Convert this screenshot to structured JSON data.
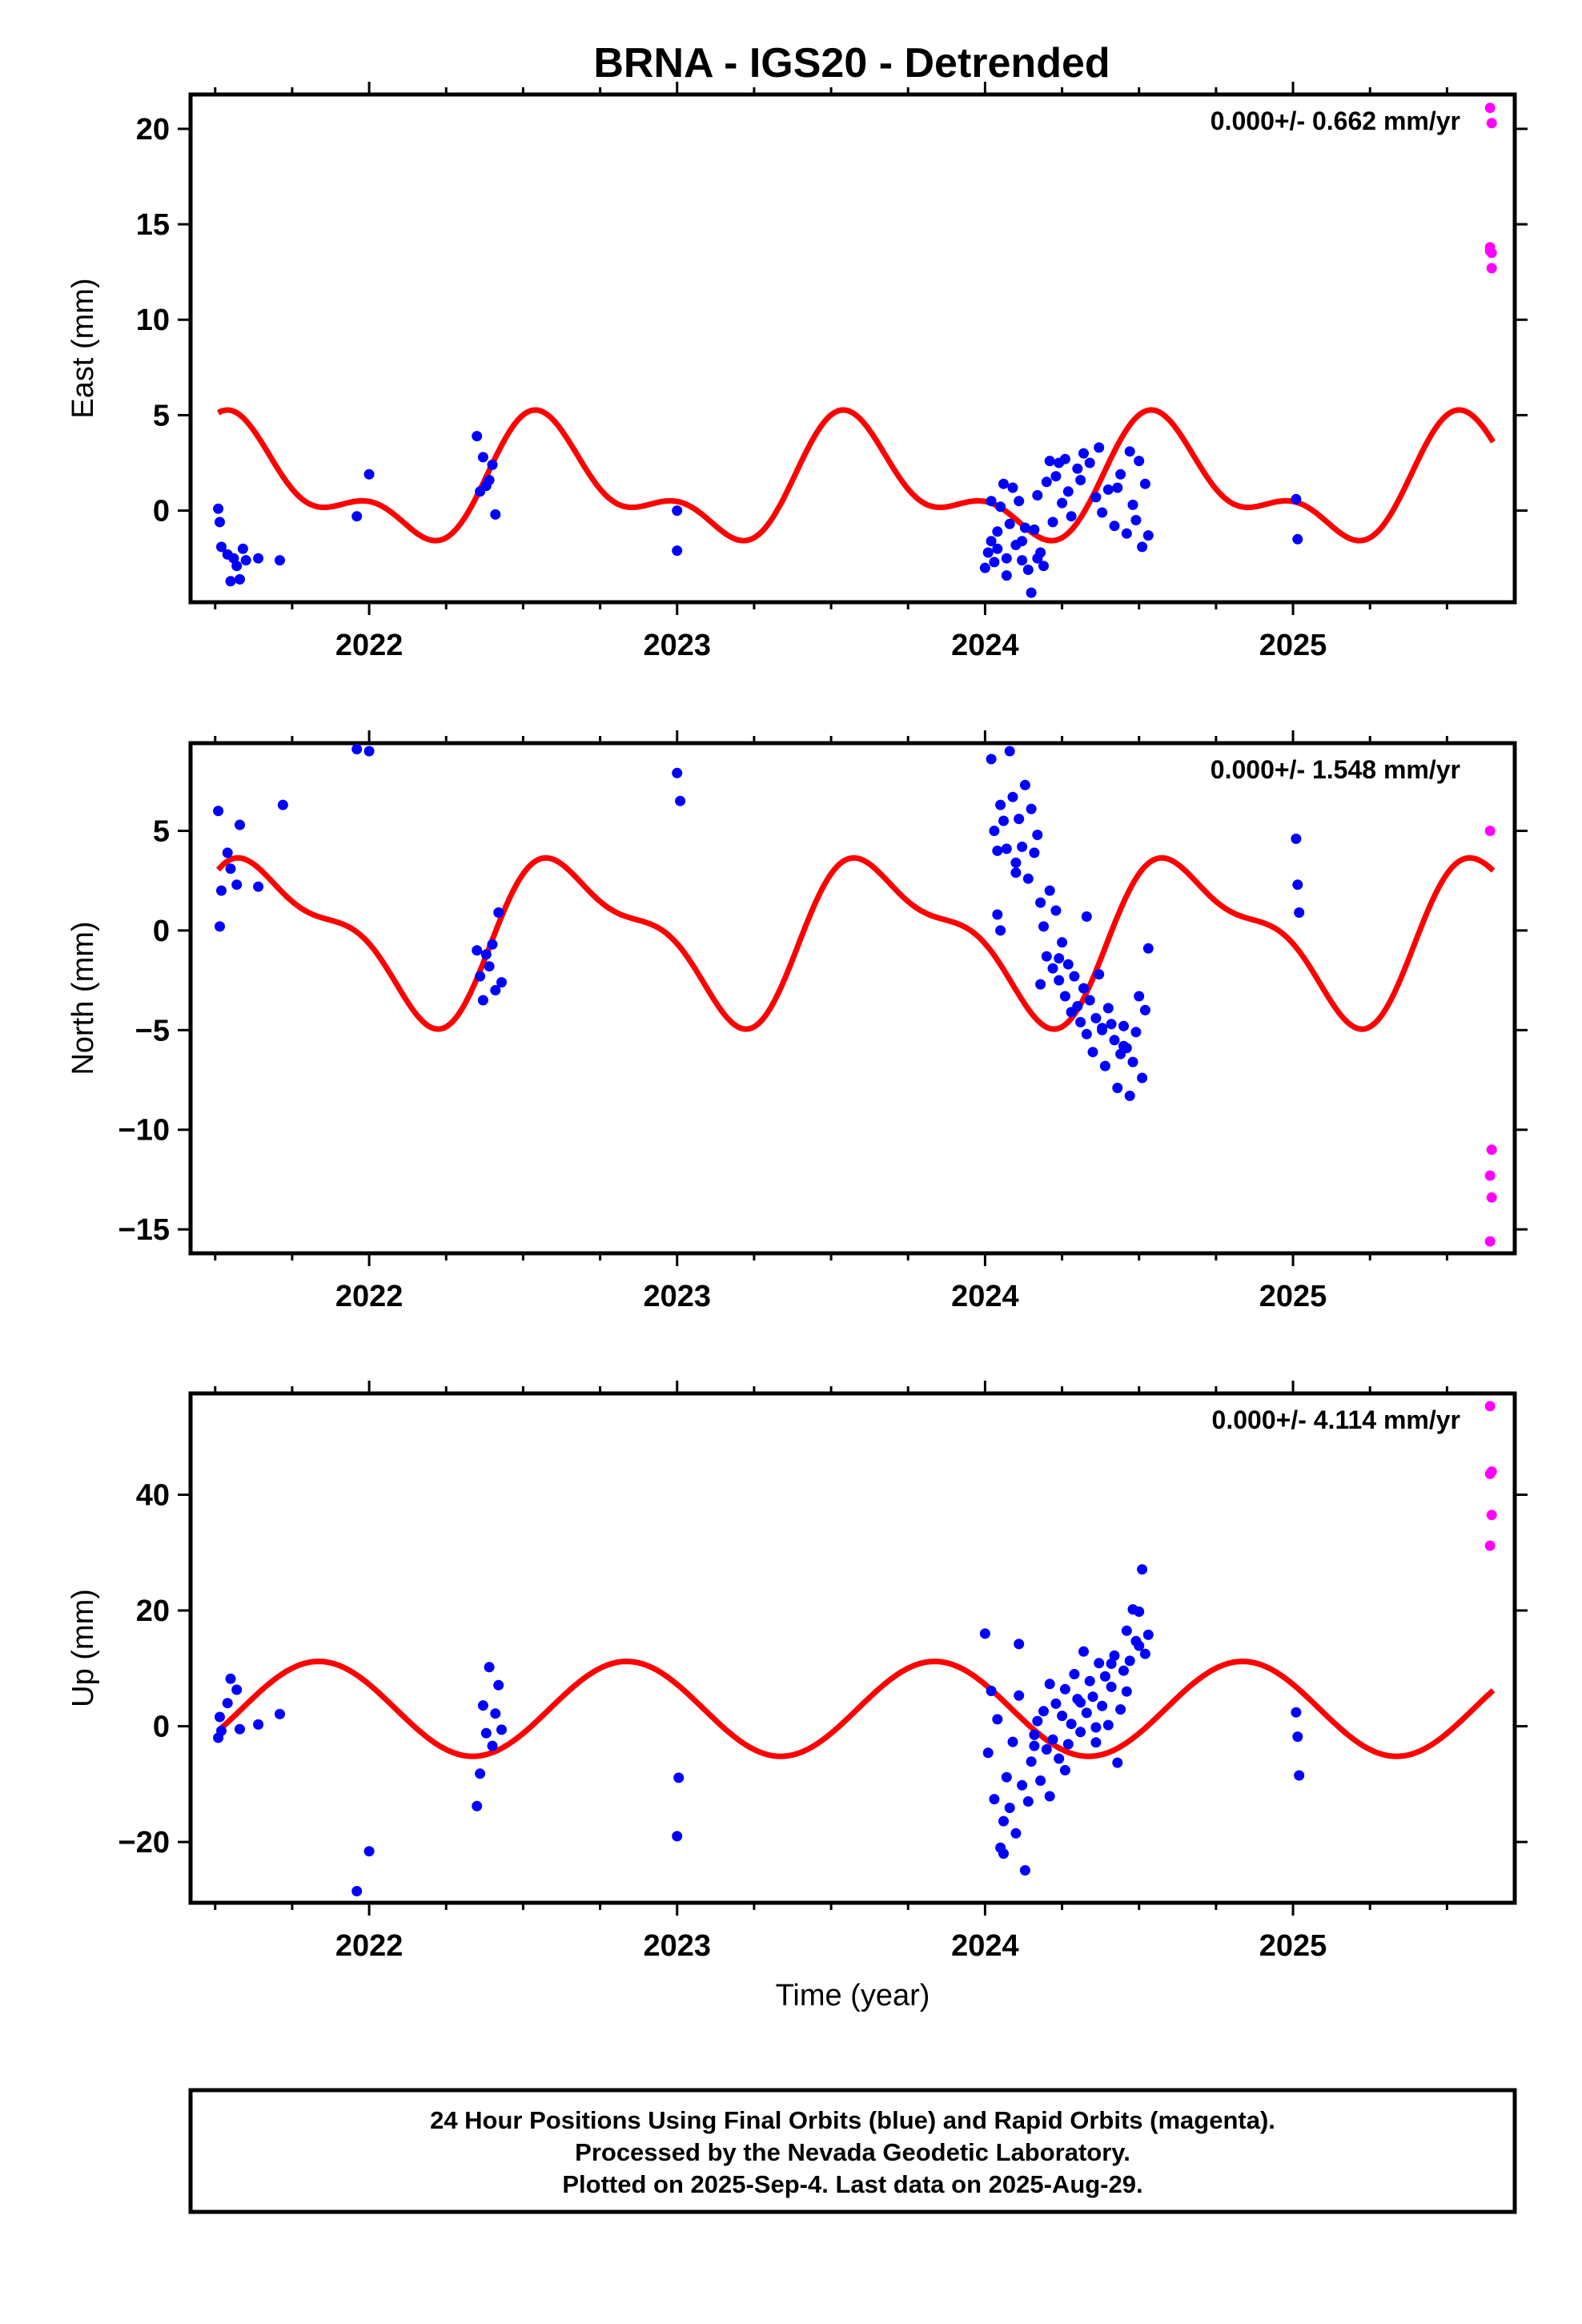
{
  "title": "BRNA - IGS20 - Detrended",
  "footer": {
    "line1": "24 Hour Positions Using Final Orbits (blue) and Rapid Orbits (magenta).",
    "line2": "Processed by the Nevada Geodetic Laboratory.",
    "line3": "Plotted on 2025-Sep-4. Last data on 2025-Aug-29."
  },
  "colors": {
    "final": "#0000ff",
    "rapid": "#ff00ff",
    "model": "#ff0000"
  },
  "chart_data": [
    {
      "type": "scatter",
      "title": "",
      "xlabel": "",
      "ylabel": "East (mm)",
      "xlim": [
        2021.42,
        2025.72
      ],
      "ylim": [
        -4.8,
        21.8
      ],
      "xticks": [
        2022,
        2023,
        2024,
        2025
      ],
      "yticks": [
        0,
        5,
        10,
        15,
        20
      ],
      "annotation": "0.000+/- 0.662 mm/yr",
      "grid": false,
      "model": {
        "amp1": 2.6,
        "phase1": 4.2,
        "amp2": 1.5,
        "phase2": 1.3,
        "offset": 1.3
      },
      "series": [
        {
          "name": "Final Orbits",
          "color": "#0000ff",
          "x": [
            2021.51,
            2021.515,
            2021.52,
            2021.54,
            2021.55,
            2021.56,
            2021.57,
            2021.58,
            2021.59,
            2021.6,
            2021.64,
            2021.71,
            2021.96,
            2022.0,
            2022.35,
            2022.36,
            2022.37,
            2022.38,
            2022.39,
            2022.4,
            2022.41,
            2023.0,
            2023.0,
            2024.0,
            2024.01,
            2024.02,
            2024.02,
            2024.03,
            2024.04,
            2024.04,
            2024.05,
            2024.06,
            2024.07,
            2024.08,
            2024.09,
            2024.1,
            2024.11,
            2024.12,
            2024.13,
            2024.14,
            2024.15,
            2024.16,
            2024.17,
            2024.18,
            2024.19,
            2024.2,
            2024.21,
            2024.22,
            2024.23,
            2024.24,
            2024.25,
            2024.27,
            2024.28,
            2024.3,
            2024.32,
            2024.34,
            2024.36,
            2024.38,
            2024.4,
            2024.42,
            2024.44,
            2024.46,
            2024.48,
            2024.49,
            2024.5,
            2024.51,
            2024.52,
            2024.53,
            2024.07,
            2024.12,
            2024.17,
            2024.26,
            2024.31,
            2024.37,
            2024.43,
            2024.47,
            2025.01,
            2025.015
          ],
          "y": [
            0.1,
            -0.6,
            -1.9,
            -2.3,
            -3.7,
            -2.5,
            -2.9,
            -3.6,
            -2.0,
            -2.6,
            -2.5,
            -2.6,
            -0.3,
            1.9,
            3.9,
            1.0,
            2.8,
            1.3,
            1.6,
            2.4,
            -0.2,
            -2.1,
            0.0,
            -3.0,
            -2.2,
            -1.6,
            0.5,
            -2.7,
            -1.1,
            -2.0,
            0.2,
            1.4,
            -2.5,
            -0.7,
            1.2,
            -1.8,
            0.5,
            -2.6,
            -0.9,
            -3.1,
            -4.3,
            -1.0,
            0.8,
            -2.2,
            -2.9,
            1.5,
            2.6,
            -0.6,
            1.8,
            2.5,
            0.4,
            1.0,
            -0.3,
            2.2,
            3.0,
            2.5,
            0.7,
            -0.1,
            1.1,
            -0.8,
            1.9,
            -1.2,
            0.3,
            -0.5,
            2.6,
            -1.9,
            1.4,
            -1.3,
            -3.4,
            -1.6,
            -2.5,
            2.7,
            1.6,
            3.3,
            1.2,
            3.1,
            0.6,
            -1.5
          ]
        },
        {
          "name": "Rapid Orbits",
          "color": "#ff00ff",
          "x": [
            2025.64,
            2025.645,
            2025.64,
            2025.645,
            2025.645,
            2025.64
          ],
          "y": [
            21.1,
            20.3,
            13.8,
            13.5,
            12.7,
            13.6
          ]
        }
      ]
    },
    {
      "type": "scatter",
      "title": "",
      "xlabel": "",
      "ylabel": "North (mm)",
      "xlim": [
        2021.42,
        2025.72
      ],
      "ylim": [
        -16.2,
        9.4
      ],
      "xticks": [
        2022,
        2023,
        2024,
        2025
      ],
      "yticks": [
        -15,
        -10,
        -5,
        0,
        5
      ],
      "annotation": "0.000+/- 1.548 mm/yr",
      "grid": false,
      "model": {
        "amp1": 3.6,
        "phase1": 3.65,
        "amp2": 1.4,
        "phase2": 1.45,
        "offset": -0.3
      },
      "series": [
        {
          "name": "Final Orbits",
          "color": "#0000ff",
          "x": [
            2021.51,
            2021.515,
            2021.52,
            2021.54,
            2021.55,
            2021.57,
            2021.58,
            2021.64,
            2021.72,
            2021.96,
            2022.0,
            2022.35,
            2022.36,
            2022.37,
            2022.38,
            2022.39,
            2022.4,
            2022.41,
            2022.42,
            2022.43,
            2023.0,
            2023.01,
            2024.02,
            2024.03,
            2024.04,
            2024.05,
            2024.06,
            2024.07,
            2024.08,
            2024.09,
            2024.1,
            2024.11,
            2024.12,
            2024.13,
            2024.14,
            2024.15,
            2024.16,
            2024.17,
            2024.18,
            2024.19,
            2024.2,
            2024.21,
            2024.22,
            2024.23,
            2024.24,
            2024.25,
            2024.26,
            2024.27,
            2024.28,
            2024.29,
            2024.3,
            2024.31,
            2024.32,
            2024.33,
            2024.34,
            2024.35,
            2024.36,
            2024.37,
            2024.38,
            2024.39,
            2024.4,
            2024.41,
            2024.42,
            2024.43,
            2024.44,
            2024.45,
            2024.46,
            2024.47,
            2024.48,
            2024.49,
            2024.5,
            2024.51,
            2024.52,
            2024.53,
            2024.04,
            2024.05,
            2024.1,
            2024.18,
            2024.24,
            2024.33,
            2024.38,
            2024.45,
            2025.01,
            2025.015,
            2025.02
          ],
          "y": [
            6.0,
            0.2,
            2.0,
            3.9,
            3.1,
            2.3,
            5.3,
            2.2,
            6.3,
            9.1,
            9.0,
            -1.0,
            -2.3,
            -3.5,
            -1.2,
            -1.8,
            -0.7,
            -3.0,
            0.9,
            -2.6,
            7.9,
            6.5,
            8.6,
            5.0,
            4.0,
            6.3,
            5.5,
            4.1,
            9.0,
            6.7,
            3.4,
            5.6,
            4.2,
            7.3,
            2.6,
            6.1,
            3.9,
            4.8,
            1.4,
            0.2,
            -1.3,
            2.0,
            -1.9,
            1.0,
            -2.5,
            -0.6,
            -3.3,
            -1.7,
            -4.1,
            -2.3,
            -3.8,
            -4.6,
            -2.9,
            -5.2,
            -3.5,
            -6.1,
            -4.4,
            -2.2,
            -5.0,
            -6.8,
            -3.9,
            -4.7,
            -5.5,
            -7.9,
            -6.2,
            -4.8,
            -5.9,
            -8.3,
            -6.6,
            -5.1,
            -3.3,
            -7.4,
            -4.0,
            -0.9,
            0.8,
            0.0,
            2.9,
            -2.7,
            -1.4,
            0.7,
            -4.9,
            -5.8,
            4.6,
            2.3,
            0.9
          ]
        },
        {
          "name": "Rapid Orbits",
          "color": "#ff00ff",
          "x": [
            2025.64,
            2025.645,
            2025.64,
            2025.645,
            2025.64
          ],
          "y": [
            5.0,
            -11.0,
            -12.3,
            -13.4,
            -15.6
          ]
        }
      ]
    },
    {
      "type": "scatter",
      "title": "",
      "xlabel": "Time (year)",
      "ylabel": "Up (mm)",
      "xlim": [
        2021.42,
        2025.72
      ],
      "ylim": [
        -30.5,
        57.5
      ],
      "xticks": [
        2022,
        2023,
        2024,
        2025
      ],
      "yticks": [
        -20,
        0,
        20,
        40
      ],
      "annotation": "0.000+/- 4.114 mm/yr",
      "grid": false,
      "model": {
        "amp1": 8.2,
        "phase1": 2.6,
        "amp2": 0.0,
        "phase2": 0.0,
        "offset": 3.0
      },
      "series": [
        {
          "name": "Final Orbits",
          "color": "#0000ff",
          "x": [
            2021.51,
            2021.515,
            2021.52,
            2021.54,
            2021.55,
            2021.57,
            2021.58,
            2021.64,
            2021.71,
            2021.96,
            2022.0,
            2022.35,
            2022.36,
            2022.37,
            2022.38,
            2022.39,
            2022.4,
            2022.41,
            2022.42,
            2022.43,
            2023.0,
            2023.005,
            2024.0,
            2024.01,
            2024.02,
            2024.03,
            2024.04,
            2024.05,
            2024.06,
            2024.07,
            2024.08,
            2024.09,
            2024.1,
            2024.11,
            2024.12,
            2024.13,
            2024.14,
            2024.15,
            2024.16,
            2024.17,
            2024.18,
            2024.19,
            2024.2,
            2024.21,
            2024.22,
            2024.23,
            2024.24,
            2024.25,
            2024.26,
            2024.27,
            2024.28,
            2024.29,
            2024.3,
            2024.31,
            2024.32,
            2024.33,
            2024.34,
            2024.35,
            2024.36,
            2024.37,
            2024.38,
            2024.39,
            2024.4,
            2024.41,
            2024.42,
            2024.43,
            2024.44,
            2024.45,
            2024.46,
            2024.47,
            2024.48,
            2024.49,
            2024.5,
            2024.51,
            2024.52,
            2024.53,
            2024.06,
            2024.11,
            2024.16,
            2024.21,
            2024.26,
            2024.31,
            2024.36,
            2024.41,
            2024.46,
            2024.5,
            2025.01,
            2025.015,
            2025.02
          ],
          "y": [
            -2.0,
            1.6,
            -0.8,
            4.0,
            8.2,
            6.3,
            -0.5,
            0.3,
            2.1,
            -28.5,
            -21.6,
            -13.8,
            -8.2,
            3.6,
            -1.2,
            10.2,
            -3.4,
            2.2,
            7.1,
            -0.6,
            -19.0,
            -8.9,
            16.0,
            -4.6,
            6.1,
            -12.6,
            1.2,
            -21.0,
            -16.4,
            -8.8,
            -14.1,
            -2.7,
            -18.5,
            5.3,
            -10.2,
            -24.9,
            -13.0,
            -6.1,
            -1.5,
            0.9,
            -9.4,
            2.6,
            -4.0,
            7.3,
            -2.3,
            3.9,
            -5.6,
            1.8,
            6.4,
            -3.1,
            0.4,
            9.0,
            4.7,
            -1.0,
            12.9,
            2.3,
            7.8,
            5.1,
            -2.8,
            10.9,
            3.5,
            8.6,
            0.2,
            6.8,
            12.2,
            -6.3,
            2.9,
            9.6,
            16.5,
            11.3,
            20.2,
            14.7,
            19.8,
            27.1,
            12.5,
            15.8,
            -22.0,
            14.2,
            -3.4,
            -12.1,
            -7.6,
            4.1,
            -0.2,
            10.8,
            6.0,
            13.9,
            2.4,
            -1.8,
            -8.5
          ]
        },
        {
          "name": "Rapid Orbits",
          "color": "#ff00ff",
          "x": [
            2025.64,
            2025.645,
            2025.64,
            2025.645,
            2025.64
          ],
          "y": [
            55.3,
            44.0,
            43.6,
            36.5,
            31.2
          ]
        }
      ]
    }
  ]
}
